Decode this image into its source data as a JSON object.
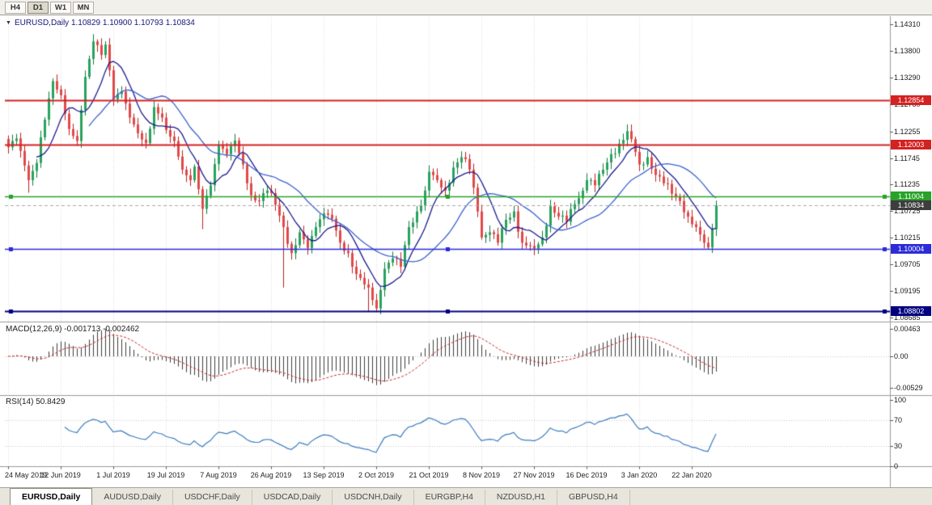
{
  "toolbar": {
    "timeframes": [
      {
        "label": "H4",
        "active": false
      },
      {
        "label": "D1",
        "active": true
      },
      {
        "label": "W1",
        "active": false
      },
      {
        "label": "MN",
        "active": false
      }
    ]
  },
  "symbol_header": {
    "dropdown_icon": "▼",
    "text": "EURUSD,Daily 1.10829 1.10900 1.10793 1.10834"
  },
  "panels": {
    "macd_label": "MACD(12,26,9) -0.001713 -0.002462",
    "rsi_label": "RSI(14) 50.8429"
  },
  "axes": {
    "price_labels": [
      "1.14310",
      "1.13800",
      "1.13290",
      "1.12780",
      "1.12255",
      "1.11745",
      "1.11235",
      "1.10725",
      "1.10215",
      "1.09705",
      "1.09195",
      "1.08685"
    ],
    "macd_labels": [
      "0.00463",
      "0.00",
      "-0.00529"
    ],
    "rsi_labels": [
      "100",
      "70",
      "30",
      "0"
    ],
    "date_labels": [
      "24 May 2019",
      "12 Jun 2019",
      "1 Jul 2019",
      "19 Jul 2019",
      "7 Aug 2019",
      "26 Aug 2019",
      "13 Sep 2019",
      "2 Oct 2019",
      "21 Oct 2019",
      "8 Nov 2019",
      "27 Nov 2019",
      "16 Dec 2019",
      "3 Jan 2020",
      "22 Jan 2020"
    ]
  },
  "hlines": [
    {
      "label": "1.12854",
      "price": 1.12854,
      "color": "#d42121",
      "width": 1.8,
      "handles": false
    },
    {
      "label": "1.12003",
      "price": 1.12003,
      "color": "#d42121",
      "width": 1.8,
      "handles": false
    },
    {
      "label": "1.11004",
      "price": 1.11004,
      "color": "#28a228",
      "width": 1.6,
      "handles": true
    },
    {
      "label": "1.10004",
      "price": 1.10004,
      "color": "#2b2bd8",
      "width": 1.6,
      "handles": true
    },
    {
      "label": "1.08802",
      "price": 1.08802,
      "color": "#000080",
      "width": 2.2,
      "handles": true
    }
  ],
  "current_price": {
    "label": "1.10834",
    "value": 1.10834,
    "badge_color": "#3d3d3d"
  },
  "tabs": [
    {
      "label": "EURUSD,Daily",
      "active": true
    },
    {
      "label": "AUDUSD,Daily",
      "active": false
    },
    {
      "label": "USDCHF,Daily",
      "active": false
    },
    {
      "label": "USDCAD,Daily",
      "active": false
    },
    {
      "label": "USDCNH,Daily",
      "active": false
    },
    {
      "label": "EURGBP,H4",
      "active": false
    },
    {
      "label": "NZDUSD,H1",
      "active": false
    },
    {
      "label": "GBPUSD,H4",
      "active": false
    }
  ],
  "colors": {
    "candle_up": "#27a35d",
    "candle_up_edge": "#0f7a3d",
    "candle_down": "#e24848",
    "candle_down_edge": "#bf1f1f",
    "macd_hist": "#3c3c3c",
    "macd_signal": "#cc2a2a",
    "rsi_line": "#3b7bbf",
    "grid": "#d8d8d8",
    "panel_divider": "#9a9a9a"
  },
  "chart_data": {
    "type": "candlestick",
    "symbol": "EURUSD",
    "timeframe": "Daily",
    "price_range_top": 1.1431,
    "price_range_bottom": 1.08685,
    "candle_count": 176,
    "close_waypoints": [
      [
        0,
        1.1195
      ],
      [
        2,
        1.1212
      ],
      [
        4,
        1.116
      ],
      [
        5,
        1.1132
      ],
      [
        7,
        1.1165
      ],
      [
        9,
        1.1248
      ],
      [
        11,
        1.1322
      ],
      [
        13,
        1.1295
      ],
      [
        15,
        1.123
      ],
      [
        17,
        1.1207
      ],
      [
        19,
        1.133
      ],
      [
        21,
        1.1398
      ],
      [
        23,
        1.1372
      ],
      [
        24,
        1.1392
      ],
      [
        26,
        1.1287
      ],
      [
        28,
        1.1302
      ],
      [
        30,
        1.1252
      ],
      [
        32,
        1.1222
      ],
      [
        34,
        1.1203
      ],
      [
        36,
        1.1272
      ],
      [
        38,
        1.1252
      ],
      [
        39,
        1.1228
      ],
      [
        41,
        1.1207
      ],
      [
        43,
        1.1152
      ],
      [
        45,
        1.1132
      ],
      [
        46,
        1.1158
      ],
      [
        48,
        1.1077
      ],
      [
        50,
        1.1122
      ],
      [
        52,
        1.1198
      ],
      [
        54,
        1.1182
      ],
      [
        56,
        1.1208
      ],
      [
        58,
        1.1162
      ],
      [
        60,
        1.1103
      ],
      [
        62,
        1.1092
      ],
      [
        64,
        1.1112
      ],
      [
        66,
        1.1085
      ],
      [
        68,
        1.1042
      ],
      [
        70,
        1.0992
      ],
      [
        72,
        1.1032
      ],
      [
        74,
        1.1002
      ],
      [
        76,
        1.1042
      ],
      [
        78,
        1.1068
      ],
      [
        80,
        1.1058
      ],
      [
        82,
        1.1012
      ],
      [
        84,
        1.0992
      ],
      [
        86,
        1.0952
      ],
      [
        88,
        1.0932
      ],
      [
        90,
        1.0902
      ],
      [
        91,
        1.0886
      ],
      [
        93,
        1.0962
      ],
      [
        95,
        1.0982
      ],
      [
        97,
        1.0966
      ],
      [
        99,
        1.1042
      ],
      [
        101,
        1.1072
      ],
      [
        103,
        1.1112
      ],
      [
        104,
        1.1148
      ],
      [
        106,
        1.1132
      ],
      [
        108,
        1.1112
      ],
      [
        110,
        1.1156
      ],
      [
        112,
        1.1176
      ],
      [
        114,
        1.1152
      ],
      [
        116,
        1.1072
      ],
      [
        117,
        1.1022
      ],
      [
        119,
        1.1032
      ],
      [
        121,
        1.1012
      ],
      [
        123,
        1.1056
      ],
      [
        125,
        1.1072
      ],
      [
        127,
        1.1012
      ],
      [
        129,
        1.1006
      ],
      [
        130,
        1.1001
      ],
      [
        132,
        1.1022
      ],
      [
        134,
        1.1082
      ],
      [
        136,
        1.1062
      ],
      [
        138,
        1.1052
      ],
      [
        140,
        1.1086
      ],
      [
        142,
        1.1112
      ],
      [
        143,
        1.1132
      ],
      [
        145,
        1.1122
      ],
      [
        147,
        1.1152
      ],
      [
        149,
        1.1182
      ],
      [
        151,
        1.1202
      ],
      [
        153,
        1.1226
      ],
      [
        155,
        1.1186
      ],
      [
        156,
        1.1162
      ],
      [
        158,
        1.1176
      ],
      [
        160,
        1.1142
      ],
      [
        162,
        1.1126
      ],
      [
        164,
        1.1106
      ],
      [
        166,
        1.1092
      ],
      [
        168,
        1.1062
      ],
      [
        170,
        1.1042
      ],
      [
        172,
        1.1012
      ],
      [
        173,
        1.1003
      ],
      [
        174,
        1.1038
      ],
      [
        175,
        1.10834
      ]
    ],
    "wick_overrides": [
      {
        "i": 5,
        "low": 1.1108
      },
      {
        "i": 21,
        "high": 1.1412
      },
      {
        "i": 48,
        "low": 1.1038
      },
      {
        "i": 68,
        "low": 1.0926
      },
      {
        "i": 89,
        "low": 1.088
      },
      {
        "i": 153,
        "high": 1.1239
      }
    ],
    "ma": [
      {
        "period": 8,
        "color": "#1b1b8f"
      },
      {
        "period": 21,
        "color": "#3b63d0"
      }
    ],
    "macd": {
      "fast": 12,
      "slow": 26,
      "signal": 9,
      "axis_top": 0.00463,
      "axis_bottom": -0.00529
    },
    "rsi": {
      "period": 14,
      "current": "50.8429",
      "levels": [
        70,
        30
      ]
    }
  }
}
